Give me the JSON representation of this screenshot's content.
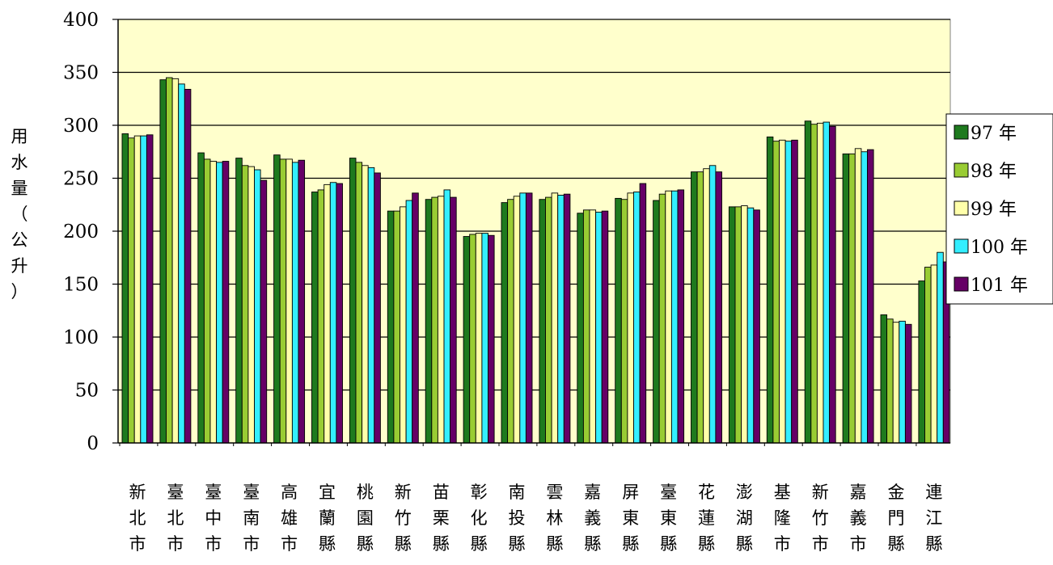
{
  "chart_data": {
    "type": "bar",
    "ylabel": "用水量（公升）",
    "ylabel_chars": [
      "用",
      "水",
      "量",
      "（",
      "公",
      "升",
      "）"
    ],
    "ylim": [
      0,
      400
    ],
    "yticks": [
      0,
      50,
      100,
      150,
      200,
      250,
      300,
      350,
      400
    ],
    "grid": true,
    "legend_position": "right",
    "plot_background": "#FFFFCC",
    "categories": [
      "新北市",
      "臺北市",
      "臺中市",
      "臺南市",
      "高雄市",
      "宜蘭縣",
      "桃園縣",
      "新竹縣",
      "苗栗縣",
      "彰化縣",
      "南投縣",
      "雲林縣",
      "嘉義縣",
      "屏東縣",
      "臺東縣",
      "花蓮縣",
      "澎湖縣",
      "基隆市",
      "新竹市",
      "嘉義市",
      "金門縣",
      "連江縣"
    ],
    "series": [
      {
        "name": "97 年",
        "color": "#1E7A1E",
        "values": [
          292,
          343,
          274,
          269,
          272,
          237,
          269,
          219,
          230,
          195,
          227,
          230,
          217,
          231,
          229,
          256,
          223,
          289,
          304,
          273,
          121,
          153
        ]
      },
      {
        "name": "98 年",
        "color": "#99CC33",
        "values": [
          288,
          345,
          268,
          262,
          268,
          239,
          265,
          219,
          232,
          197,
          230,
          232,
          220,
          230,
          235,
          256,
          223,
          285,
          301,
          273,
          117,
          166
        ]
      },
      {
        "name": "99 年",
        "color": "#FFFFAA",
        "values": [
          290,
          344,
          266,
          261,
          268,
          244,
          262,
          223,
          233,
          198,
          233,
          236,
          220,
          236,
          238,
          259,
          224,
          286,
          302,
          278,
          114,
          168
        ]
      },
      {
        "name": "100 年",
        "color": "#33EEFF",
        "values": [
          290,
          339,
          265,
          258,
          265,
          246,
          260,
          229,
          239,
          198,
          236,
          234,
          218,
          237,
          238,
          262,
          222,
          285,
          303,
          275,
          115,
          180
        ]
      },
      {
        "name": "101 年",
        "color": "#660066",
        "values": [
          291,
          334,
          266,
          248,
          267,
          245,
          255,
          236,
          232,
          196,
          236,
          235,
          219,
          245,
          239,
          256,
          220,
          286,
          299,
          277,
          112,
          171
        ]
      }
    ]
  }
}
